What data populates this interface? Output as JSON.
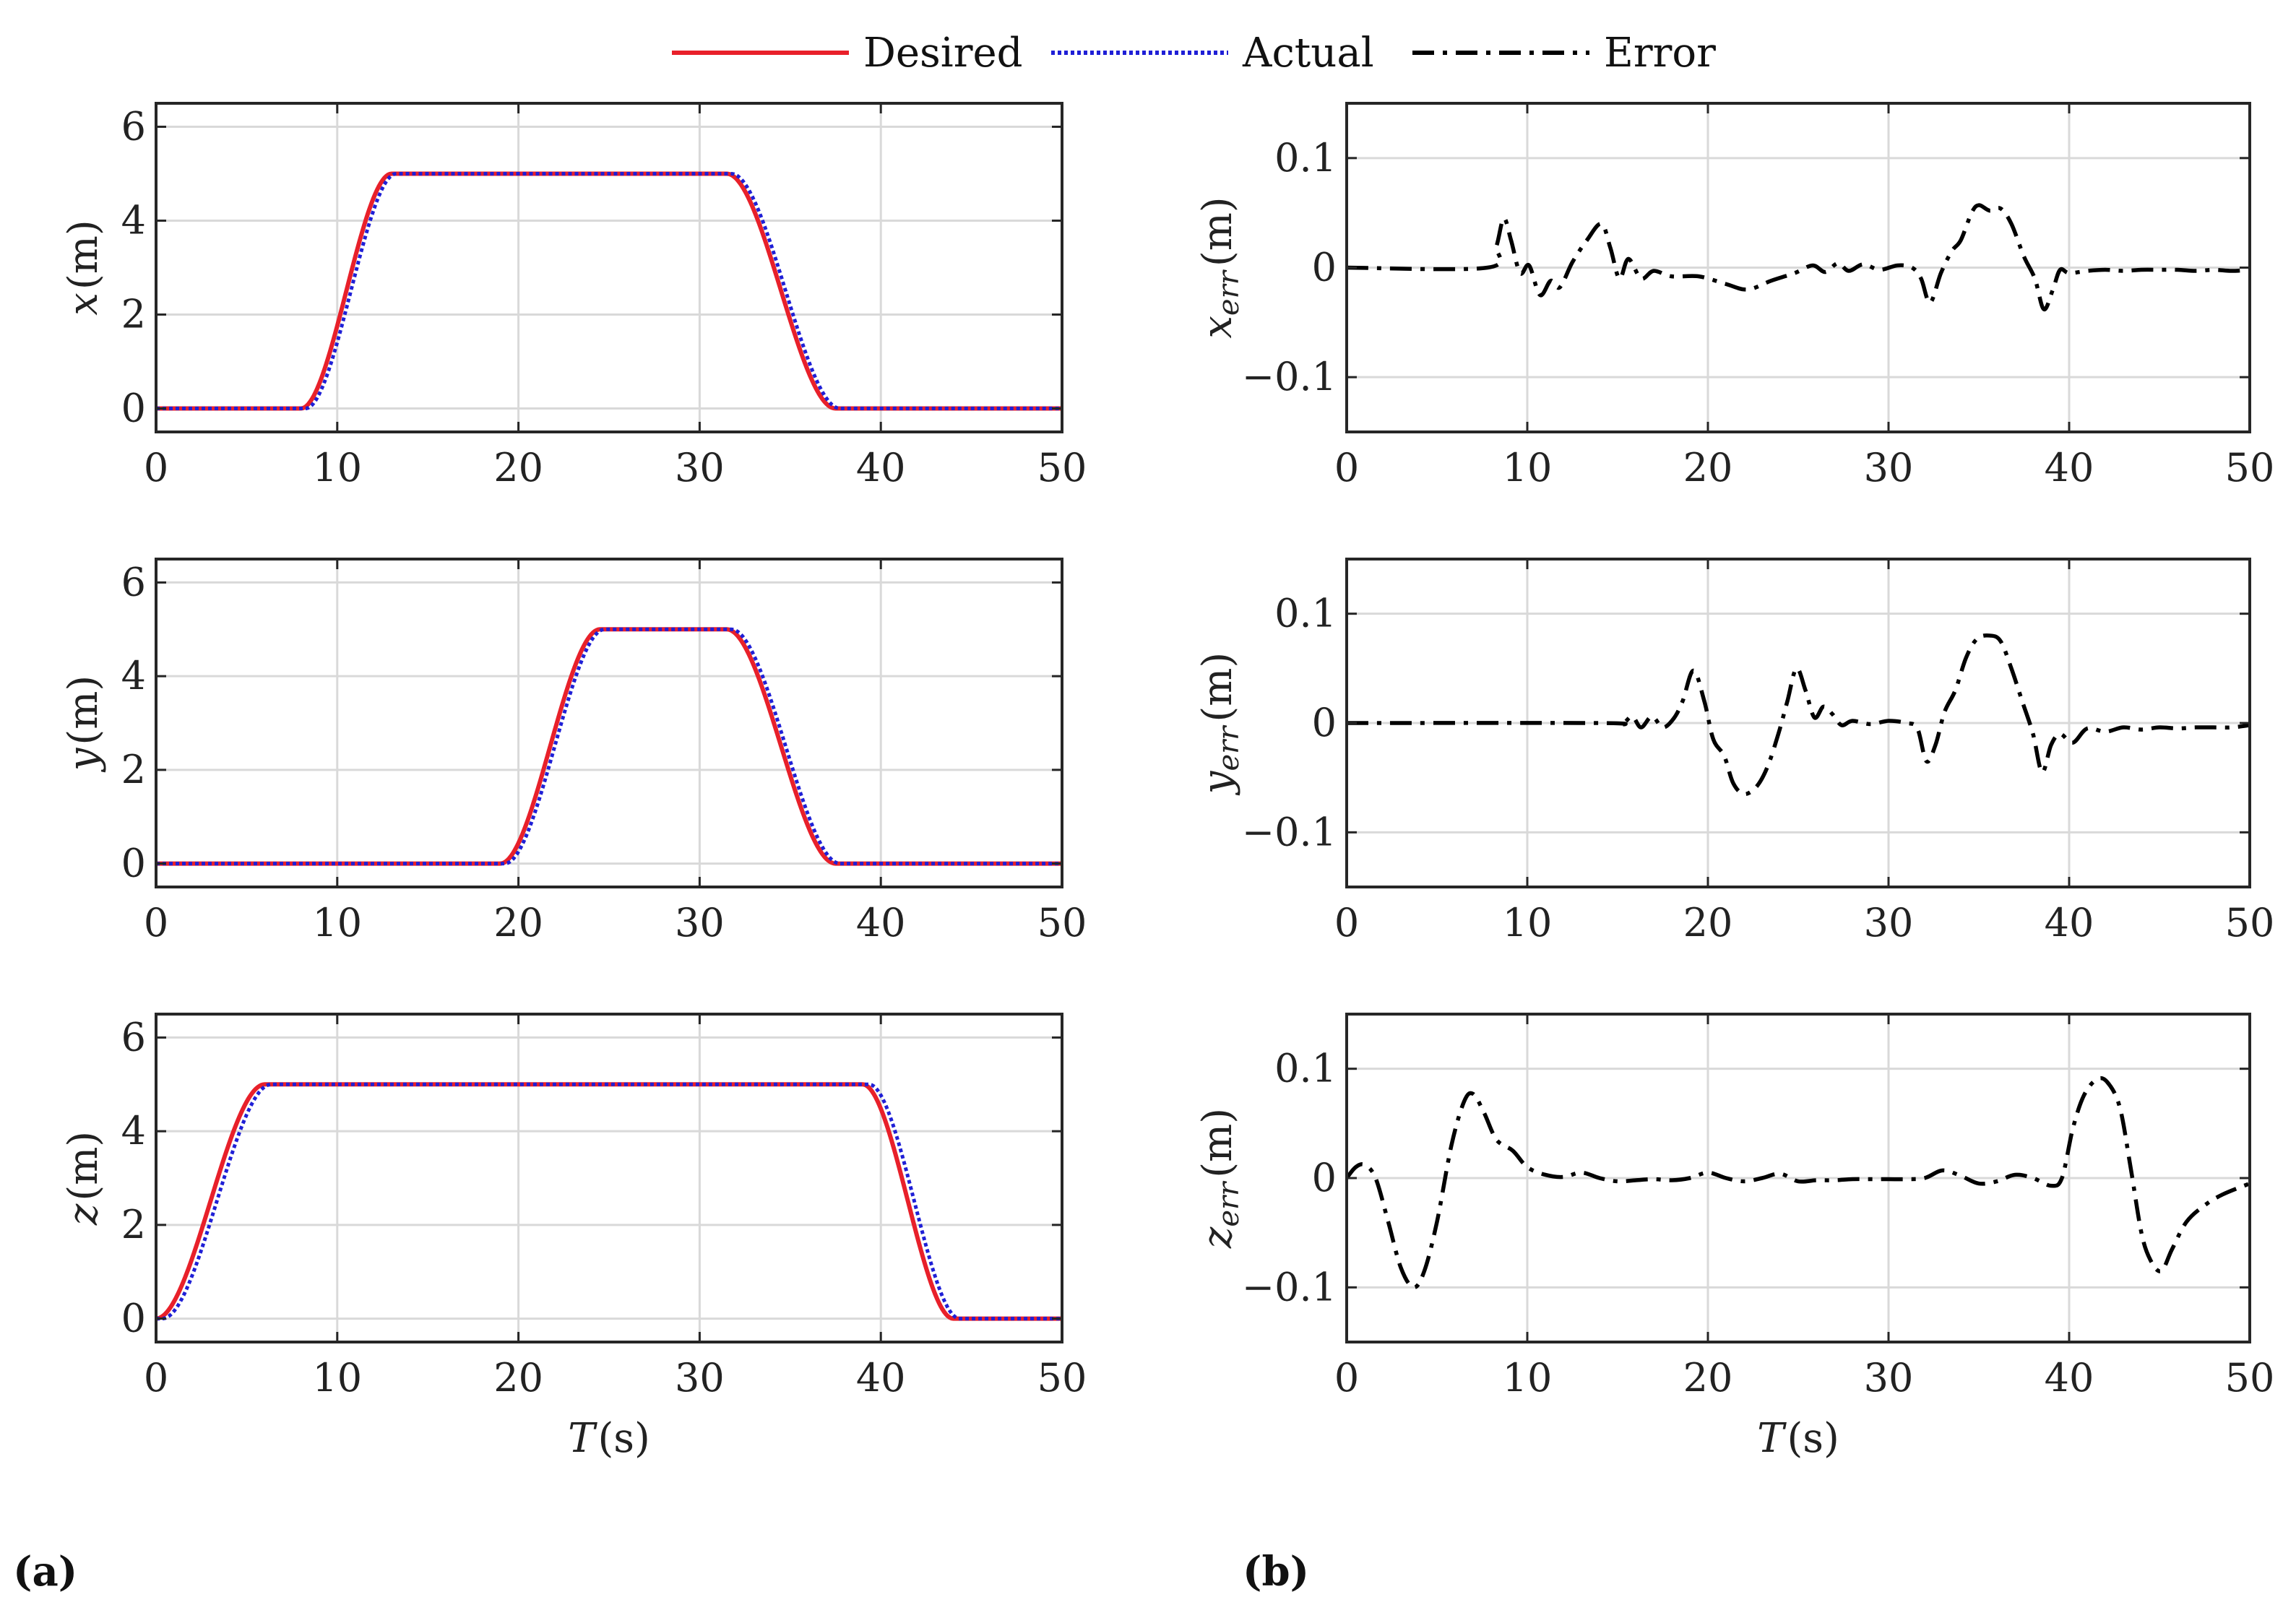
{
  "legend": [
    {
      "key": "desired",
      "label": "Desired",
      "color": "#e8202a",
      "dash": "none"
    },
    {
      "key": "actual",
      "label": "Actual",
      "color": "#1f1fd6",
      "dash": "dot"
    },
    {
      "key": "error",
      "label": "Error",
      "color": "#000000",
      "dash": "dashdot"
    }
  ],
  "panel_labels": {
    "a": "(a)",
    "b": "(b)"
  },
  "chart_data": [
    {
      "id": "x",
      "type": "line",
      "column": "a",
      "ylabel": {
        "var": "x",
        "unit": "(m)"
      },
      "xlabel": "",
      "xlim": [
        0,
        50
      ],
      "ylim": [
        -0.5,
        6.5
      ],
      "xticks": [
        0,
        10,
        20,
        30,
        40,
        50
      ],
      "yticks": [
        0,
        2,
        4,
        6
      ],
      "ytick_labels": [
        "0",
        "2",
        "4",
        "6"
      ],
      "grid": true,
      "series": [
        {
          "name": "Desired",
          "segments": [
            [
              0,
              0,
              8
            ],
            [
              8,
              5,
              13
            ],
            [
              13,
              5,
              31.5
            ],
            [
              31.5,
              0,
              37.5
            ],
            [
              37.5,
              0,
              50
            ]
          ]
        },
        {
          "name": "Actual",
          "lag": 0.25
        }
      ]
    },
    {
      "id": "y",
      "type": "line",
      "column": "a",
      "ylabel": {
        "var": "y",
        "unit": "(m)"
      },
      "xlabel": "",
      "xlim": [
        0,
        50
      ],
      "ylim": [
        -0.5,
        6.5
      ],
      "xticks": [
        0,
        10,
        20,
        30,
        40,
        50
      ],
      "yticks": [
        0,
        2,
        4,
        6
      ],
      "ytick_labels": [
        "0",
        "2",
        "4",
        "6"
      ],
      "grid": true,
      "series": [
        {
          "name": "Desired",
          "segments": [
            [
              0,
              0,
              19
            ],
            [
              19,
              5,
              24.5
            ],
            [
              24.5,
              5,
              31.5
            ],
            [
              31.5,
              0,
              37.5
            ],
            [
              37.5,
              0,
              50
            ]
          ]
        },
        {
          "name": "Actual",
          "lag": 0.25
        }
      ]
    },
    {
      "id": "z",
      "type": "line",
      "column": "a",
      "ylabel": {
        "var": "z",
        "unit": "(m)"
      },
      "xlabel": {
        "var": "T",
        "unit": "(s)"
      },
      "xlim": [
        0,
        50
      ],
      "ylim": [
        -0.5,
        6.5
      ],
      "xticks": [
        0,
        10,
        20,
        30,
        40,
        50
      ],
      "yticks": [
        0,
        2,
        4,
        6
      ],
      "ytick_labels": [
        "0",
        "2",
        "4",
        "6"
      ],
      "grid": true,
      "series": [
        {
          "name": "Desired",
          "segments": [
            [
              0,
              0,
              0
            ],
            [
              0,
              5,
              6
            ],
            [
              6,
              5,
              39
            ],
            [
              39,
              0,
              44
            ],
            [
              44,
              0,
              50
            ]
          ]
        },
        {
          "name": "Actual",
          "lag": 0.35
        }
      ]
    },
    {
      "id": "xerr",
      "type": "line",
      "column": "b",
      "ylabel": {
        "var": "x",
        "sub": "err",
        "unit": "(m)"
      },
      "xlabel": "",
      "xlim": [
        0,
        50
      ],
      "ylim": [
        -0.15,
        0.15
      ],
      "xticks": [
        0,
        10,
        20,
        30,
        40,
        50
      ],
      "yticks": [
        -0.1,
        0,
        0.1
      ],
      "ytick_labels": [
        "−0.1",
        "0",
        "0.1"
      ],
      "grid": true,
      "series": [
        {
          "name": "Error",
          "points": [
            [
              0,
              0
            ],
            [
              7.8,
              0
            ],
            [
              8.3,
              0.02
            ],
            [
              8.7,
              0.045
            ],
            [
              9.1,
              0.025
            ],
            [
              9.6,
              -0.005
            ],
            [
              10.1,
              0.002
            ],
            [
              10.7,
              -0.025
            ],
            [
              11.3,
              -0.012
            ],
            [
              11.8,
              -0.018
            ],
            [
              12.5,
              0.005
            ],
            [
              13.3,
              0.025
            ],
            [
              14.1,
              0.04
            ],
            [
              14.6,
              0.018
            ],
            [
              15.1,
              -0.01
            ],
            [
              15.6,
              0.008
            ],
            [
              16.3,
              -0.01
            ],
            [
              17,
              -0.003
            ],
            [
              18,
              -0.008
            ],
            [
              19.5,
              -0.008
            ],
            [
              21,
              -0.015
            ],
            [
              22.2,
              -0.02
            ],
            [
              23.5,
              -0.012
            ],
            [
              24.8,
              -0.005
            ],
            [
              25.8,
              0.002
            ],
            [
              26.5,
              -0.004
            ],
            [
              27.2,
              0.004
            ],
            [
              27.8,
              -0.003
            ],
            [
              28.6,
              0.003
            ],
            [
              29.5,
              -0.002
            ],
            [
              30.5,
              0.002
            ],
            [
              31.3,
              0
            ],
            [
              31.8,
              -0.01
            ],
            [
              32.3,
              -0.032
            ],
            [
              32.9,
              -0.005
            ],
            [
              33.5,
              0.015
            ],
            [
              34,
              0.025
            ],
            [
              34.6,
              0.05
            ],
            [
              35,
              0.057
            ],
            [
              35.6,
              0.052
            ],
            [
              36.2,
              0.054
            ],
            [
              36.8,
              0.04
            ],
            [
              37.5,
              0.01
            ],
            [
              38.1,
              -0.01
            ],
            [
              38.6,
              -0.038
            ],
            [
              39.1,
              -0.02
            ],
            [
              39.5,
              -0.002
            ],
            [
              40,
              -0.005
            ],
            [
              41,
              -0.003
            ],
            [
              42,
              -0.002
            ],
            [
              43,
              -0.003
            ],
            [
              44,
              -0.002
            ],
            [
              45,
              -0.002
            ],
            [
              46,
              -0.002
            ],
            [
              47,
              -0.003
            ],
            [
              48,
              -0.002
            ],
            [
              49,
              -0.003
            ],
            [
              50,
              -0.002
            ]
          ]
        }
      ]
    },
    {
      "id": "yerr",
      "type": "line",
      "column": "b",
      "ylabel": {
        "var": "y",
        "sub": "err",
        "unit": "(m)"
      },
      "xlabel": "",
      "xlim": [
        0,
        50
      ],
      "ylim": [
        -0.15,
        0.15
      ],
      "xticks": [
        0,
        10,
        20,
        30,
        40,
        50
      ],
      "yticks": [
        -0.1,
        0,
        0.1
      ],
      "ytick_labels": [
        "−0.1",
        "0",
        "0.1"
      ],
      "grid": true,
      "series": [
        {
          "name": "Error",
          "points": [
            [
              0,
              0
            ],
            [
              14,
              0
            ],
            [
              15.2,
              -0.001
            ],
            [
              15.8,
              0.006
            ],
            [
              16.3,
              -0.004
            ],
            [
              16.9,
              0.006
            ],
            [
              17.5,
              -0.004
            ],
            [
              18.1,
              0.004
            ],
            [
              18.6,
              0.02
            ],
            [
              19.2,
              0.048
            ],
            [
              19.8,
              0.02
            ],
            [
              20.3,
              -0.015
            ],
            [
              20.9,
              -0.03
            ],
            [
              21.4,
              -0.055
            ],
            [
              22,
              -0.065
            ],
            [
              22.7,
              -0.058
            ],
            [
              23.3,
              -0.04
            ],
            [
              23.9,
              -0.01
            ],
            [
              24.4,
              0.02
            ],
            [
              24.9,
              0.05
            ],
            [
              25.4,
              0.03
            ],
            [
              25.9,
              0.005
            ],
            [
              26.4,
              0.015
            ],
            [
              26.9,
              0.008
            ],
            [
              27.4,
              -0.002
            ],
            [
              28,
              0.002
            ],
            [
              29,
              -0.001
            ],
            [
              30,
              0.002
            ],
            [
              31,
              0
            ],
            [
              31.6,
              -0.005
            ],
            [
              32.1,
              -0.035
            ],
            [
              32.6,
              -0.02
            ],
            [
              33.1,
              0.01
            ],
            [
              33.7,
              0.03
            ],
            [
              34.3,
              0.06
            ],
            [
              34.9,
              0.077
            ],
            [
              35.6,
              0.08
            ],
            [
              36.2,
              0.075
            ],
            [
              36.8,
              0.05
            ],
            [
              37.4,
              0.02
            ],
            [
              38,
              -0.01
            ],
            [
              38.5,
              -0.045
            ],
            [
              39,
              -0.02
            ],
            [
              39.5,
              -0.01
            ],
            [
              40.2,
              -0.018
            ],
            [
              41,
              -0.005
            ],
            [
              42,
              -0.008
            ],
            [
              43,
              -0.004
            ],
            [
              44,
              -0.006
            ],
            [
              45,
              -0.004
            ],
            [
              46,
              -0.005
            ],
            [
              47,
              -0.004
            ],
            [
              48,
              -0.004
            ],
            [
              49,
              -0.004
            ],
            [
              50,
              -0.002
            ]
          ]
        }
      ]
    },
    {
      "id": "zerr",
      "type": "line",
      "column": "b",
      "ylabel": {
        "var": "z",
        "sub": "err",
        "unit": "(m)"
      },
      "xlabel": {
        "var": "T",
        "unit": "(s)"
      },
      "xlim": [
        0,
        50
      ],
      "ylim": [
        -0.15,
        0.15
      ],
      "xticks": [
        0,
        10,
        20,
        30,
        40,
        50
      ],
      "yticks": [
        -0.1,
        0,
        0.1
      ],
      "ytick_labels": [
        "−0.1",
        "0",
        "0.1"
      ],
      "grid": true,
      "series": [
        {
          "name": "Error",
          "points": [
            [
              0,
              0
            ],
            [
              0.5,
              0.01
            ],
            [
              1,
              0.012
            ],
            [
              1.6,
              0
            ],
            [
              2.3,
              -0.04
            ],
            [
              3,
              -0.082
            ],
            [
              3.7,
              -0.1
            ],
            [
              4.3,
              -0.085
            ],
            [
              5,
              -0.04
            ],
            [
              5.8,
              0.03
            ],
            [
              6.5,
              0.07
            ],
            [
              7,
              0.077
            ],
            [
              7.6,
              0.06
            ],
            [
              8.3,
              0.035
            ],
            [
              9.2,
              0.025
            ],
            [
              10,
              0.01
            ],
            [
              11,
              0.003
            ],
            [
              12,
              0.001
            ],
            [
              13,
              0.005
            ],
            [
              14,
              0
            ],
            [
              15,
              -0.003
            ],
            [
              16,
              -0.002
            ],
            [
              17,
              -0.001
            ],
            [
              18,
              -0.002
            ],
            [
              19,
              0
            ],
            [
              20,
              0.005
            ],
            [
              21,
              0
            ],
            [
              22,
              -0.003
            ],
            [
              23,
              0
            ],
            [
              24,
              0.004
            ],
            [
              25,
              -0.003
            ],
            [
              26,
              -0.002
            ],
            [
              27,
              -0.002
            ],
            [
              28,
              -0.001
            ],
            [
              29,
              -0.001
            ],
            [
              30,
              -0.001
            ],
            [
              31,
              -0.001
            ],
            [
              32,
              0
            ],
            [
              33,
              0.007
            ],
            [
              34,
              0.002
            ],
            [
              35,
              -0.005
            ],
            [
              36,
              -0.003
            ],
            [
              37,
              0.003
            ],
            [
              38,
              0
            ],
            [
              39,
              -0.007
            ],
            [
              39.6,
              0
            ],
            [
              40.2,
              0.045
            ],
            [
              40.8,
              0.075
            ],
            [
              41.5,
              0.09
            ],
            [
              42.1,
              0.088
            ],
            [
              42.8,
              0.065
            ],
            [
              43.4,
              0.01
            ],
            [
              44,
              -0.05
            ],
            [
              44.5,
              -0.075
            ],
            [
              45.1,
              -0.085
            ],
            [
              45.7,
              -0.065
            ],
            [
              46.5,
              -0.04
            ],
            [
              47.5,
              -0.025
            ],
            [
              48.5,
              -0.015
            ],
            [
              50,
              -0.005
            ]
          ]
        }
      ]
    }
  ]
}
